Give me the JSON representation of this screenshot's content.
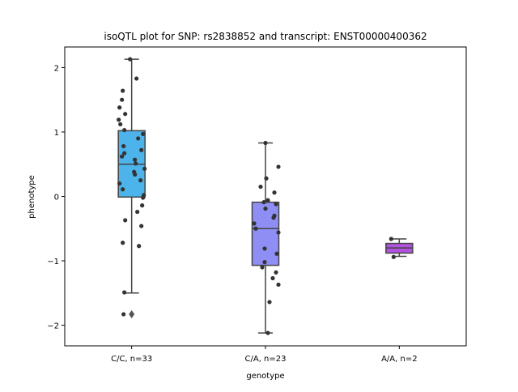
{
  "chart_data": {
    "type": "box",
    "title": "isoQTL plot for SNP: rs2838852 and transcript: ENST00000400362",
    "xlabel": "genotype",
    "ylabel": "phenotype",
    "ylim": [
      -2.32,
      2.32
    ],
    "yticks": [
      -2,
      -1,
      0,
      1,
      2
    ],
    "ytick_labels": [
      "−2",
      "−1",
      "0",
      "1",
      "2"
    ],
    "categories": [
      "C/C, n=33",
      "C/A, n=23",
      "A/A, n=2"
    ],
    "colors": [
      "#4cb3eb",
      "#8f8ef5",
      "#b152e0"
    ],
    "boxes": [
      {
        "q1": -0.01,
        "median": 0.5,
        "q3": 1.02,
        "whisker_low": -1.5,
        "whisker_high": 2.13,
        "outliers": [
          -1.83
        ]
      },
      {
        "q1": -1.07,
        "median": -0.5,
        "q3": -0.09,
        "whisker_low": -2.12,
        "whisker_high": 0.83,
        "outliers": []
      },
      {
        "q1": -0.88,
        "median": -0.8,
        "q3": -0.73,
        "whisker_low": -0.93,
        "whisker_high": -0.66,
        "outliers": []
      }
    ],
    "points": [
      [
        [
          -0.02,
          2.13
        ],
        [
          0.06,
          1.83
        ],
        [
          -0.11,
          1.64
        ],
        [
          -0.12,
          1.5
        ],
        [
          -0.15,
          1.38
        ],
        [
          -0.08,
          1.28
        ],
        [
          -0.16,
          1.19
        ],
        [
          -0.14,
          1.12
        ],
        [
          -0.09,
          1.03
        ],
        [
          0.14,
          0.97
        ],
        [
          0.08,
          0.9
        ],
        [
          -0.1,
          0.78
        ],
        [
          0.12,
          0.72
        ],
        [
          -0.09,
          0.67
        ],
        [
          -0.12,
          0.62
        ],
        [
          0.04,
          0.57
        ],
        [
          0.05,
          0.51
        ],
        [
          0.16,
          0.43
        ],
        [
          0.03,
          0.38
        ],
        [
          0.04,
          0.34
        ],
        [
          0.11,
          0.25
        ],
        [
          -0.15,
          0.2
        ],
        [
          -0.11,
          0.11
        ],
        [
          0.15,
          0.02
        ],
        [
          0.14,
          -0.02
        ],
        [
          0.13,
          -0.14
        ],
        [
          0.07,
          -0.24
        ],
        [
          -0.08,
          -0.37
        ],
        [
          0.12,
          -0.46
        ],
        [
          -0.11,
          -0.72
        ],
        [
          0.09,
          -0.77
        ],
        [
          -0.09,
          -1.49
        ],
        [
          -0.1,
          -1.83
        ]
      ],
      [
        [
          0.0,
          0.83
        ],
        [
          0.16,
          0.46
        ],
        [
          0.01,
          0.28
        ],
        [
          -0.06,
          0.15
        ],
        [
          0.11,
          0.06
        ],
        [
          0.03,
          -0.06
        ],
        [
          0.13,
          -0.12
        ],
        [
          0.0,
          -0.19
        ],
        [
          0.11,
          -0.3
        ],
        [
          0.1,
          -0.33
        ],
        [
          -0.14,
          -0.42
        ],
        [
          -0.12,
          -0.5
        ],
        [
          0.16,
          -0.56
        ],
        [
          -0.01,
          -0.81
        ],
        [
          0.14,
          -0.89
        ],
        [
          -0.01,
          -1.02
        ],
        [
          -0.04,
          -1.1
        ],
        [
          0.13,
          -1.18
        ],
        [
          0.09,
          -1.27
        ],
        [
          0.16,
          -1.37
        ],
        [
          0.05,
          -1.64
        ],
        [
          0.03,
          -2.12
        ],
        [
          -0.02,
          -0.09
        ]
      ],
      [
        [
          -0.1,
          -0.66
        ],
        [
          -0.07,
          -0.94
        ]
      ]
    ]
  }
}
